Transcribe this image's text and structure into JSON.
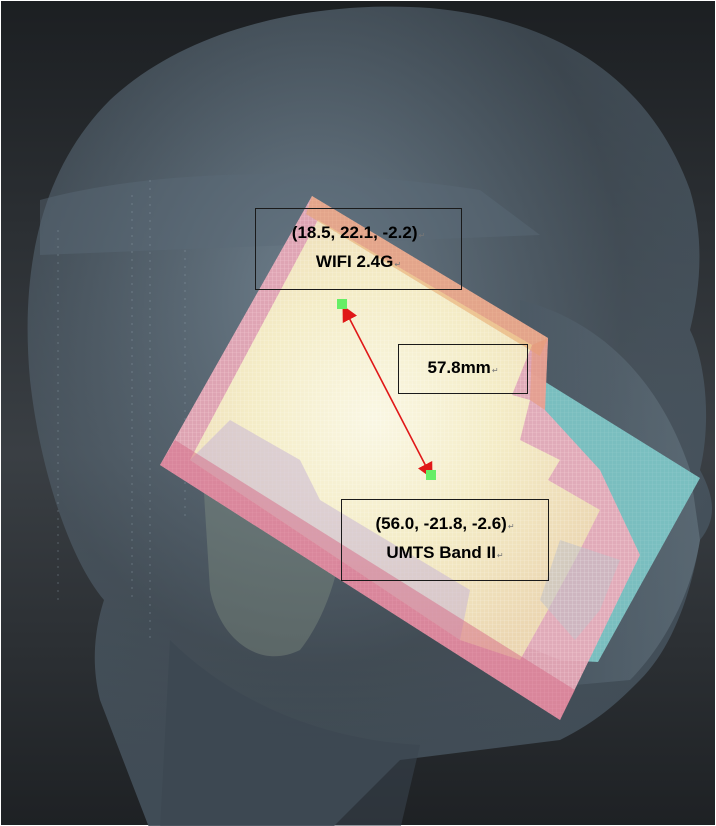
{
  "markers": {
    "wifi": {
      "coords": "(18.5, 22.1, -2.2)",
      "band": "WIFI 2.4G"
    },
    "umts": {
      "coords": "(56.0, -21.8, -2.6)",
      "band": "UMTS Band II"
    },
    "distance": "57.8mm"
  },
  "colors": {
    "background_dark": "#2b2f33",
    "head_fill": "#4f5e6b",
    "phone_body": "#f3efc6",
    "phone_border": "#d9889a",
    "phone_panel_cyan": "#7ec9c9",
    "marker_green": "#66ee66",
    "arrow_red": "#e01818"
  },
  "icons": {
    "wifi_marker": "green-square-point",
    "umts_marker": "green-square-point",
    "measure_arrow": "double-headed-arrow"
  }
}
